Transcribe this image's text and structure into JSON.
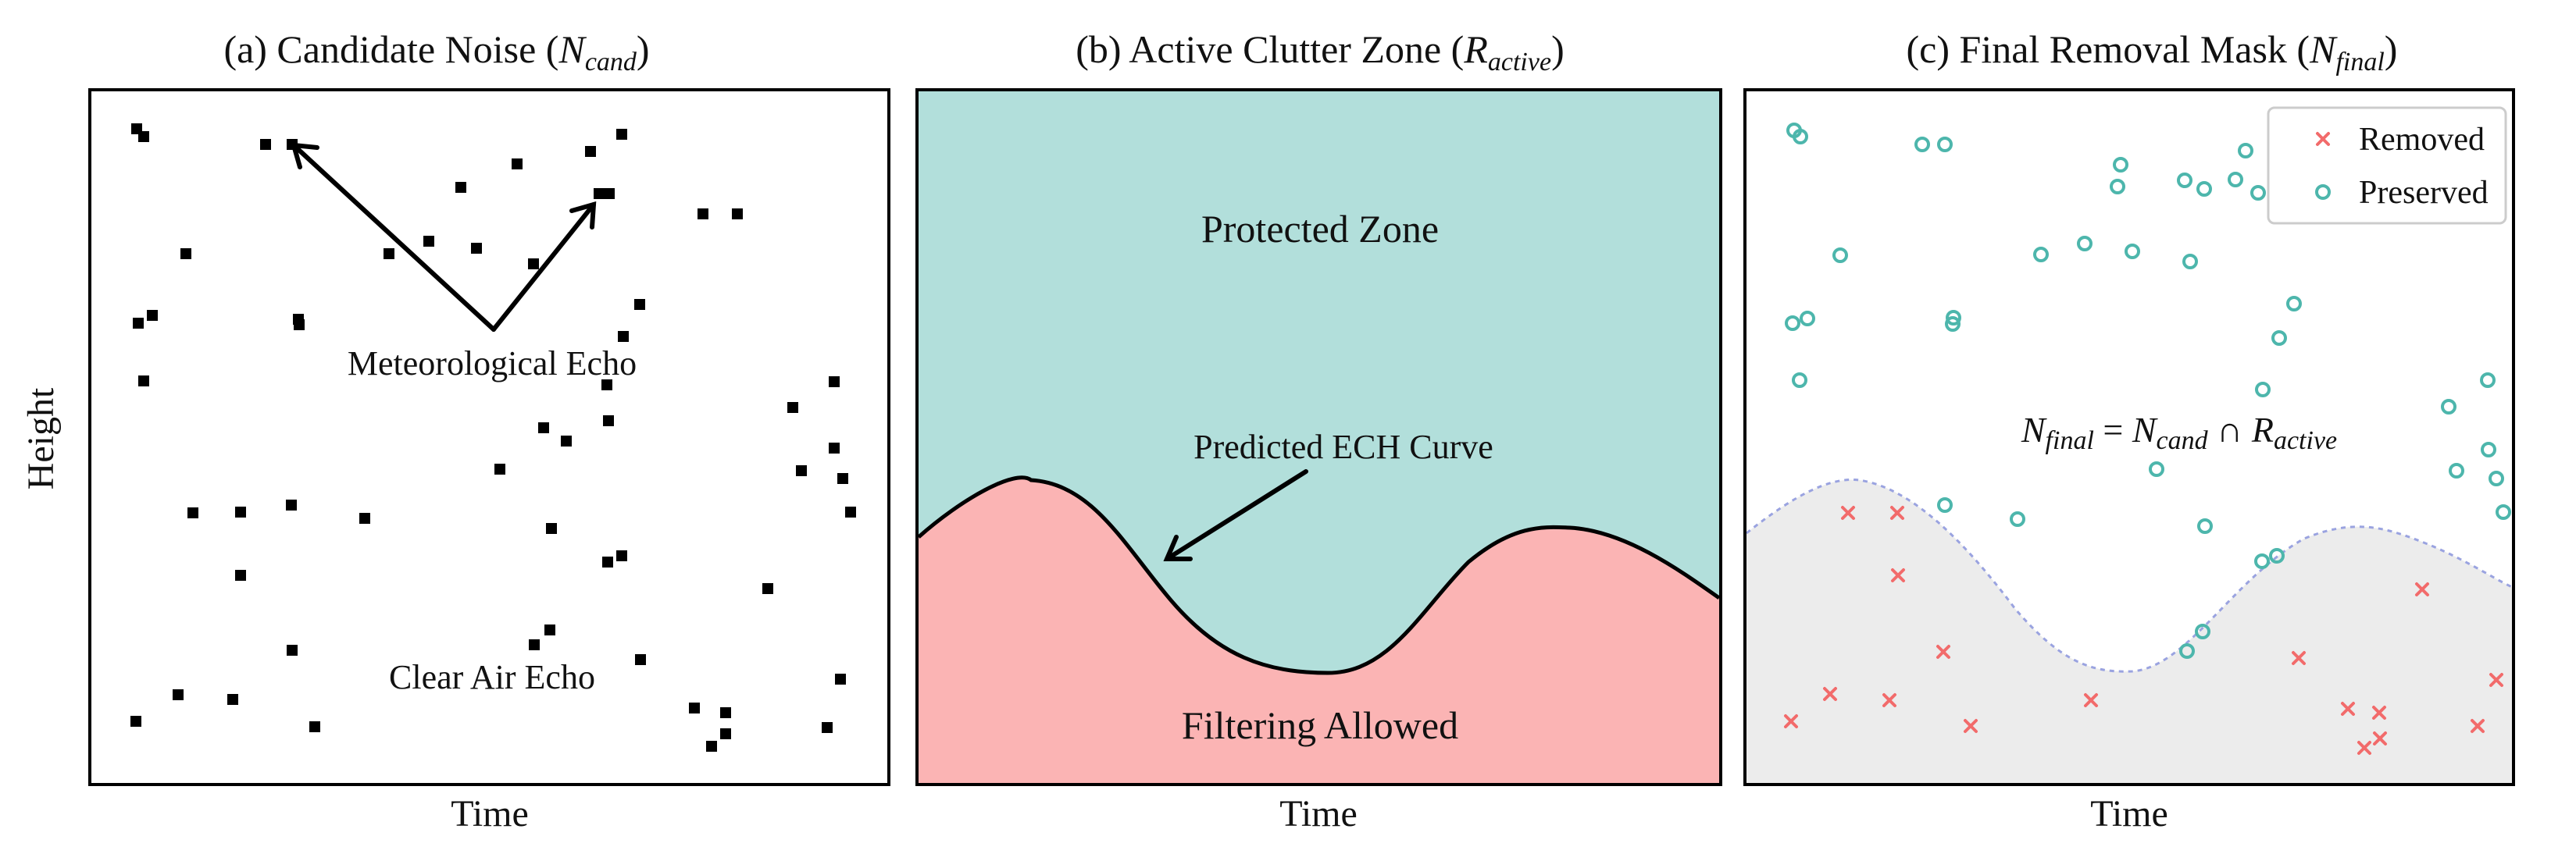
{
  "figure": {
    "y_axis_label": "Height",
    "panels": [
      {
        "id": "a",
        "title_prefix": "(a) Candidate Noise (",
        "title_var": "N",
        "title_sub": "cand",
        "title_suffix": ")",
        "x_label": "Time",
        "annotations": {
          "meteorological": "Meteorological Echo",
          "clear_air": "Clear Air Echo"
        }
      },
      {
        "id": "b",
        "title_prefix": "(b) Active Clutter Zone (",
        "title_var": "R",
        "title_sub": "active",
        "title_suffix": ")",
        "x_label": "Time",
        "zones": {
          "protected": "Protected Zone",
          "filtering": "Filtering Allowed"
        },
        "curve_label": "Predicted ECH Curve"
      },
      {
        "id": "c",
        "title_prefix": "(c) Final Removal Mask (",
        "title_var": "N",
        "title_sub": "final",
        "title_suffix": ")",
        "x_label": "Time",
        "legend": {
          "removed": "Removed",
          "preserved": "Preserved"
        },
        "formula": {
          "n": "N",
          "sub_final": "final",
          "eq": " = ",
          "n2": "N",
          "sub_cand": "cand",
          "cap": " ∩ ",
          "r": "R",
          "sub_active": "active"
        }
      }
    ]
  },
  "colors": {
    "protected_fill": "#b2dfdb",
    "filtering_fill": "#fbb4b4",
    "removed_marker": "#f26b6b",
    "preserved_marker": "#4db6ac",
    "clutter_shade": "#ececec",
    "dashed_curve": "#9aa3e0"
  }
}
